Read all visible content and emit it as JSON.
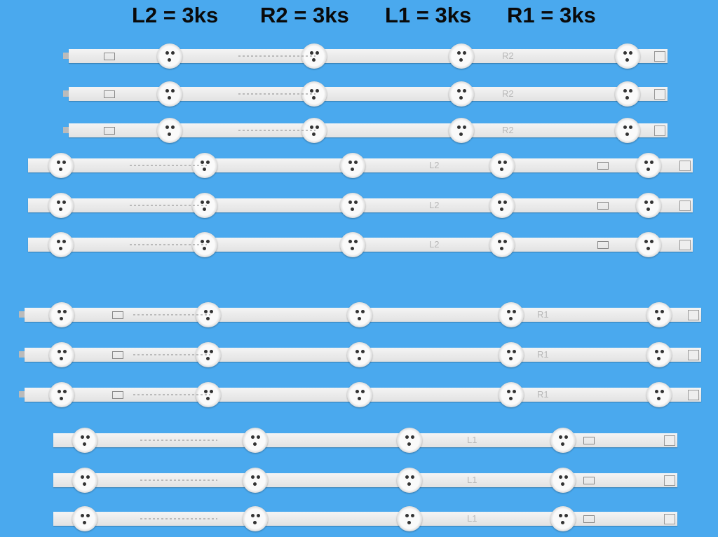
{
  "header": {
    "items": [
      "L2 = 3ks",
      "R2 = 3ks",
      "L1 = 3ks",
      "R1 = 3ks"
    ]
  },
  "background_color": "#4aa9ee",
  "groups": [
    {
      "strip_label": "R2",
      "count": 3
    },
    {
      "strip_label": "L2",
      "count": 3
    },
    {
      "strip_label": "R1",
      "count": 3
    },
    {
      "strip_label": "L1",
      "count": 3
    }
  ]
}
